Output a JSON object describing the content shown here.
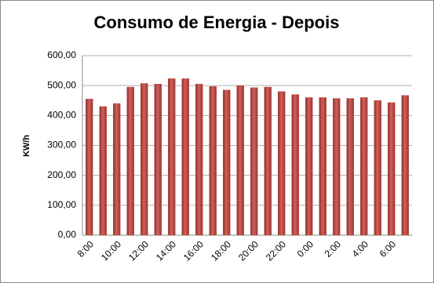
{
  "chart_data": {
    "type": "bar",
    "title": "Consumo de Energia - Depois",
    "y_label": "KW/h",
    "categories": [
      "8:00",
      null,
      "10:00",
      null,
      "12:00",
      null,
      "14:00",
      null,
      "16:00",
      null,
      "18:00",
      null,
      "20:00",
      null,
      "22:00",
      null,
      "0:00",
      null,
      "2:00",
      null,
      "4:00",
      null,
      "6:00",
      null
    ],
    "values": [
      455,
      430,
      440,
      495,
      507,
      505,
      523,
      523,
      505,
      497,
      485,
      500,
      493,
      495,
      480,
      470,
      460,
      460,
      457,
      457,
      460,
      450,
      443,
      467
    ],
    "color": "#c0504d",
    "ylim": [
      0,
      600
    ],
    "yticks": [
      {
        "value": 0,
        "label": "0,00"
      },
      {
        "value": 100,
        "label": "100,00"
      },
      {
        "value": 200,
        "label": "200,00"
      },
      {
        "value": 300,
        "label": "300,00"
      },
      {
        "value": 400,
        "label": "400,00"
      },
      {
        "value": 500,
        "label": "500,00"
      },
      {
        "value": 600,
        "label": "600,00"
      }
    ],
    "grid": true
  }
}
